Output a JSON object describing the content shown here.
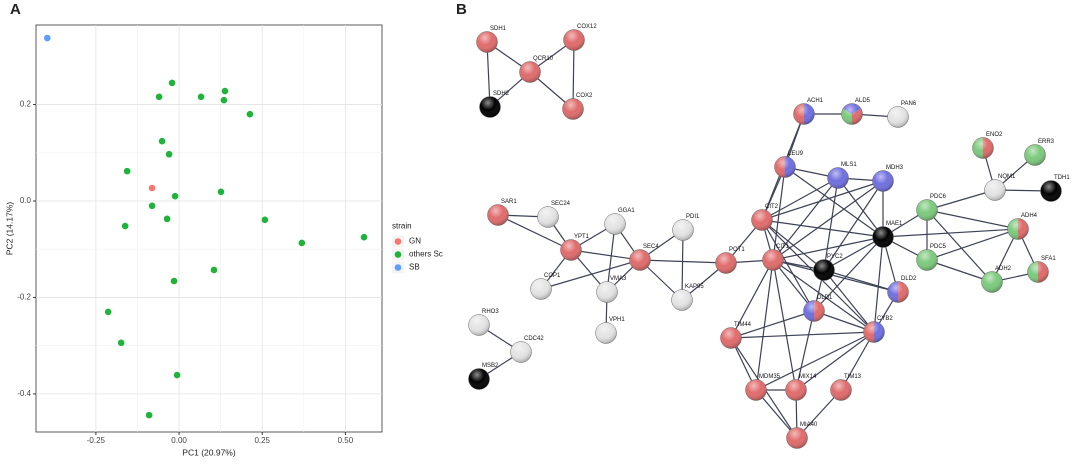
{
  "panel_labels": [
    "A",
    "B"
  ],
  "chart_data": {
    "type": "scatter",
    "x_label": "PC1 (20.97%)",
    "y_label": "PC2 (14.17%)",
    "legend_title": "strain",
    "xlim": [
      -0.43,
      0.61
    ],
    "ylim": [
      -0.479,
      0.365
    ],
    "xticks": [
      -0.25,
      {
        "value": 0,
        "label": "0.00"
      },
      0.25,
      {
        "value": 0.5,
        "label": "0.50"
      }
    ],
    "yticks": [
      0.2,
      {
        "value": 0,
        "label": "0.0"
      },
      -0.2,
      -0.4
    ],
    "grid": true,
    "legend": "right",
    "series": [
      {
        "name": "GN",
        "color": "#f8766d",
        "x": [
          -0.081
        ],
        "y": [
          0.027
        ]
      },
      {
        "name": "others Sc",
        "color": "#1fb33a",
        "x": [
          -0.021,
          -0.06,
          0.066,
          0.138,
          0.135,
          0.213,
          -0.051,
          -0.03,
          -0.156,
          -0.012,
          -0.081,
          0.126,
          -0.036,
          -0.162,
          0.258,
          0.369,
          0.556,
          -0.015,
          0.105,
          -0.213,
          -0.174,
          -0.006,
          -0.09
        ],
        "y": [
          0.245,
          0.216,
          0.216,
          0.228,
          0.209,
          0.18,
          0.124,
          0.097,
          0.062,
          0.01,
          -0.01,
          0.019,
          -0.037,
          -0.052,
          -0.039,
          -0.087,
          -0.075,
          -0.166,
          -0.143,
          -0.23,
          -0.294,
          -0.361,
          -0.444
        ]
      },
      {
        "name": "SB",
        "color": "#619cff",
        "x": [
          -0.396
        ],
        "y": [
          0.338
        ]
      }
    ]
  },
  "network": {
    "nodes": [
      {
        "label": "SDH1",
        "colors": [
          "#e06b6b"
        ]
      },
      {
        "label": "COX12",
        "colors": [
          "#e06b6b"
        ]
      },
      {
        "label": "QCR10",
        "colors": [
          "#e06b6b"
        ]
      },
      {
        "label": "SDH2",
        "colors": [
          "#000000"
        ]
      },
      {
        "label": "COX2",
        "colors": [
          "#e06b6b"
        ]
      },
      {
        "label": "ACH1",
        "colors": [
          "#e06b6b",
          "#6f6fe0"
        ]
      },
      {
        "label": "ALD5",
        "colors": [
          "#7cc97c",
          "#6f6fe0",
          "#e06b6b"
        ]
      },
      {
        "label": "PAN6",
        "colors": [
          "#e4e4e4"
        ]
      },
      {
        "label": "LEU9",
        "colors": [
          "#e06b6b",
          "#6f6fe0"
        ]
      },
      {
        "label": "MLS1",
        "colors": [
          "#6f6fe0"
        ]
      },
      {
        "label": "MDH3",
        "colors": [
          "#6f6fe0"
        ]
      },
      {
        "label": "ENO2",
        "colors": [
          "#7cc97c",
          "#e06b6b"
        ]
      },
      {
        "label": "ERR3",
        "colors": [
          "#7cc97c"
        ]
      },
      {
        "label": "NQM1",
        "colors": [
          "#e4e4e4"
        ]
      },
      {
        "label": "TDH1",
        "colors": [
          "#000000"
        ]
      },
      {
        "label": "SAR1",
        "colors": [
          "#e06b6b"
        ]
      },
      {
        "label": "SEC24",
        "colors": [
          "#e4e4e4"
        ]
      },
      {
        "label": "GGA1",
        "colors": [
          "#e4e4e4"
        ]
      },
      {
        "label": "PDI1",
        "colors": [
          "#e4e4e4"
        ]
      },
      {
        "label": "CIT2",
        "colors": [
          "#e06b6b"
        ]
      },
      {
        "label": "PDC6",
        "colors": [
          "#7cc97c"
        ]
      },
      {
        "label": "MAE1",
        "colors": [
          "#000000"
        ]
      },
      {
        "label": "ADH4",
        "colors": [
          "#7cc97c",
          "#e06b6b"
        ]
      },
      {
        "label": "YPT1",
        "colors": [
          "#e06b6b"
        ]
      },
      {
        "label": "SEC4",
        "colors": [
          "#e06b6b"
        ]
      },
      {
        "label": "POT1",
        "colors": [
          "#e06b6b"
        ]
      },
      {
        "label": "CIT1",
        "colors": [
          "#e06b6b"
        ]
      },
      {
        "label": "PYC2",
        "colors": [
          "#000000"
        ]
      },
      {
        "label": "PDC5",
        "colors": [
          "#7cc97c"
        ]
      },
      {
        "label": "ADH2",
        "colors": [
          "#7cc97c"
        ]
      },
      {
        "label": "SFA1",
        "colors": [
          "#7cc97c",
          "#e06b6b"
        ]
      },
      {
        "label": "COP1",
        "colors": [
          "#e4e4e4"
        ]
      },
      {
        "label": "VMA3",
        "colors": [
          "#e4e4e4"
        ]
      },
      {
        "label": "KAP95",
        "colors": [
          "#e4e4e4"
        ]
      },
      {
        "label": "DLD2",
        "colors": [
          "#6f6fe0",
          "#e06b6b"
        ]
      },
      {
        "label": "DLD1",
        "colors": [
          "#6f6fe0",
          "#e06b6b"
        ]
      },
      {
        "label": "RHO3",
        "colors": [
          "#e4e4e4"
        ]
      },
      {
        "label": "VPH1",
        "colors": [
          "#e4e4e4"
        ]
      },
      {
        "label": "TIM44",
        "colors": [
          "#e06b6b"
        ]
      },
      {
        "label": "CYB2",
        "colors": [
          "#e06b6b",
          "#6f6fe0"
        ]
      },
      {
        "label": "CDC42",
        "colors": [
          "#e4e4e4"
        ]
      },
      {
        "label": "MSB2",
        "colors": [
          "#000000"
        ]
      },
      {
        "label": "MDM35",
        "colors": [
          "#e06b6b"
        ]
      },
      {
        "label": "MIX14",
        "colors": [
          "#e06b6b"
        ]
      },
      {
        "label": "TIM13",
        "colors": [
          "#e06b6b"
        ]
      },
      {
        "label": "MIA40",
        "colors": [
          "#e06b6b"
        ]
      }
    ],
    "edges": [
      [
        0,
        2
      ],
      [
        0,
        3
      ],
      [
        1,
        2
      ],
      [
        2,
        3
      ],
      [
        2,
        4
      ],
      [
        1,
        4
      ],
      [
        5,
        6
      ],
      [
        6,
        7
      ],
      [
        5,
        8
      ],
      [
        5,
        19
      ],
      [
        11,
        13
      ],
      [
        12,
        13
      ],
      [
        13,
        14
      ],
      [
        13,
        20
      ],
      [
        15,
        16
      ],
      [
        15,
        23
      ],
      [
        16,
        23
      ],
      [
        23,
        17
      ],
      [
        23,
        24
      ],
      [
        23,
        31
      ],
      [
        23,
        32
      ],
      [
        17,
        24
      ],
      [
        17,
        32
      ],
      [
        24,
        32
      ],
      [
        24,
        25
      ],
      [
        18,
        24
      ],
      [
        18,
        33
      ],
      [
        24,
        33
      ],
      [
        25,
        33
      ],
      [
        32,
        37
      ],
      [
        31,
        24
      ],
      [
        25,
        26
      ],
      [
        25,
        19
      ],
      [
        36,
        40
      ],
      [
        40,
        41
      ],
      [
        8,
        9
      ],
      [
        8,
        19
      ],
      [
        8,
        26
      ],
      [
        8,
        21
      ],
      [
        9,
        10
      ],
      [
        9,
        19
      ],
      [
        9,
        26
      ],
      [
        9,
        21
      ],
      [
        9,
        27
      ],
      [
        10,
        19
      ],
      [
        10,
        26
      ],
      [
        10,
        21
      ],
      [
        10,
        27
      ],
      [
        19,
        26
      ],
      [
        19,
        21
      ],
      [
        19,
        27
      ],
      [
        26,
        27
      ],
      [
        26,
        21
      ],
      [
        26,
        35
      ],
      [
        26,
        38
      ],
      [
        26,
        39
      ],
      [
        26,
        42
      ],
      [
        26,
        43
      ],
      [
        26,
        34
      ],
      [
        27,
        21
      ],
      [
        27,
        35
      ],
      [
        27,
        39
      ],
      [
        27,
        34
      ],
      [
        21,
        20
      ],
      [
        21,
        28
      ],
      [
        21,
        34
      ],
      [
        21,
        39
      ],
      [
        21,
        22
      ],
      [
        35,
        39
      ],
      [
        35,
        38
      ],
      [
        35,
        43
      ],
      [
        39,
        38
      ],
      [
        39,
        42
      ],
      [
        39,
        43
      ],
      [
        39,
        44
      ],
      [
        39,
        34
      ],
      [
        38,
        42
      ],
      [
        38,
        45
      ],
      [
        42,
        43
      ],
      [
        42,
        45
      ],
      [
        43,
        45
      ],
      [
        44,
        45
      ],
      [
        19,
        35
      ],
      [
        19,
        39
      ],
      [
        21,
        35
      ],
      [
        20,
        28
      ],
      [
        20,
        22
      ],
      [
        20,
        29
      ],
      [
        28,
        22
      ],
      [
        28,
        29
      ],
      [
        22,
        29
      ],
      [
        29,
        30
      ],
      [
        22,
        30
      ]
    ]
  }
}
